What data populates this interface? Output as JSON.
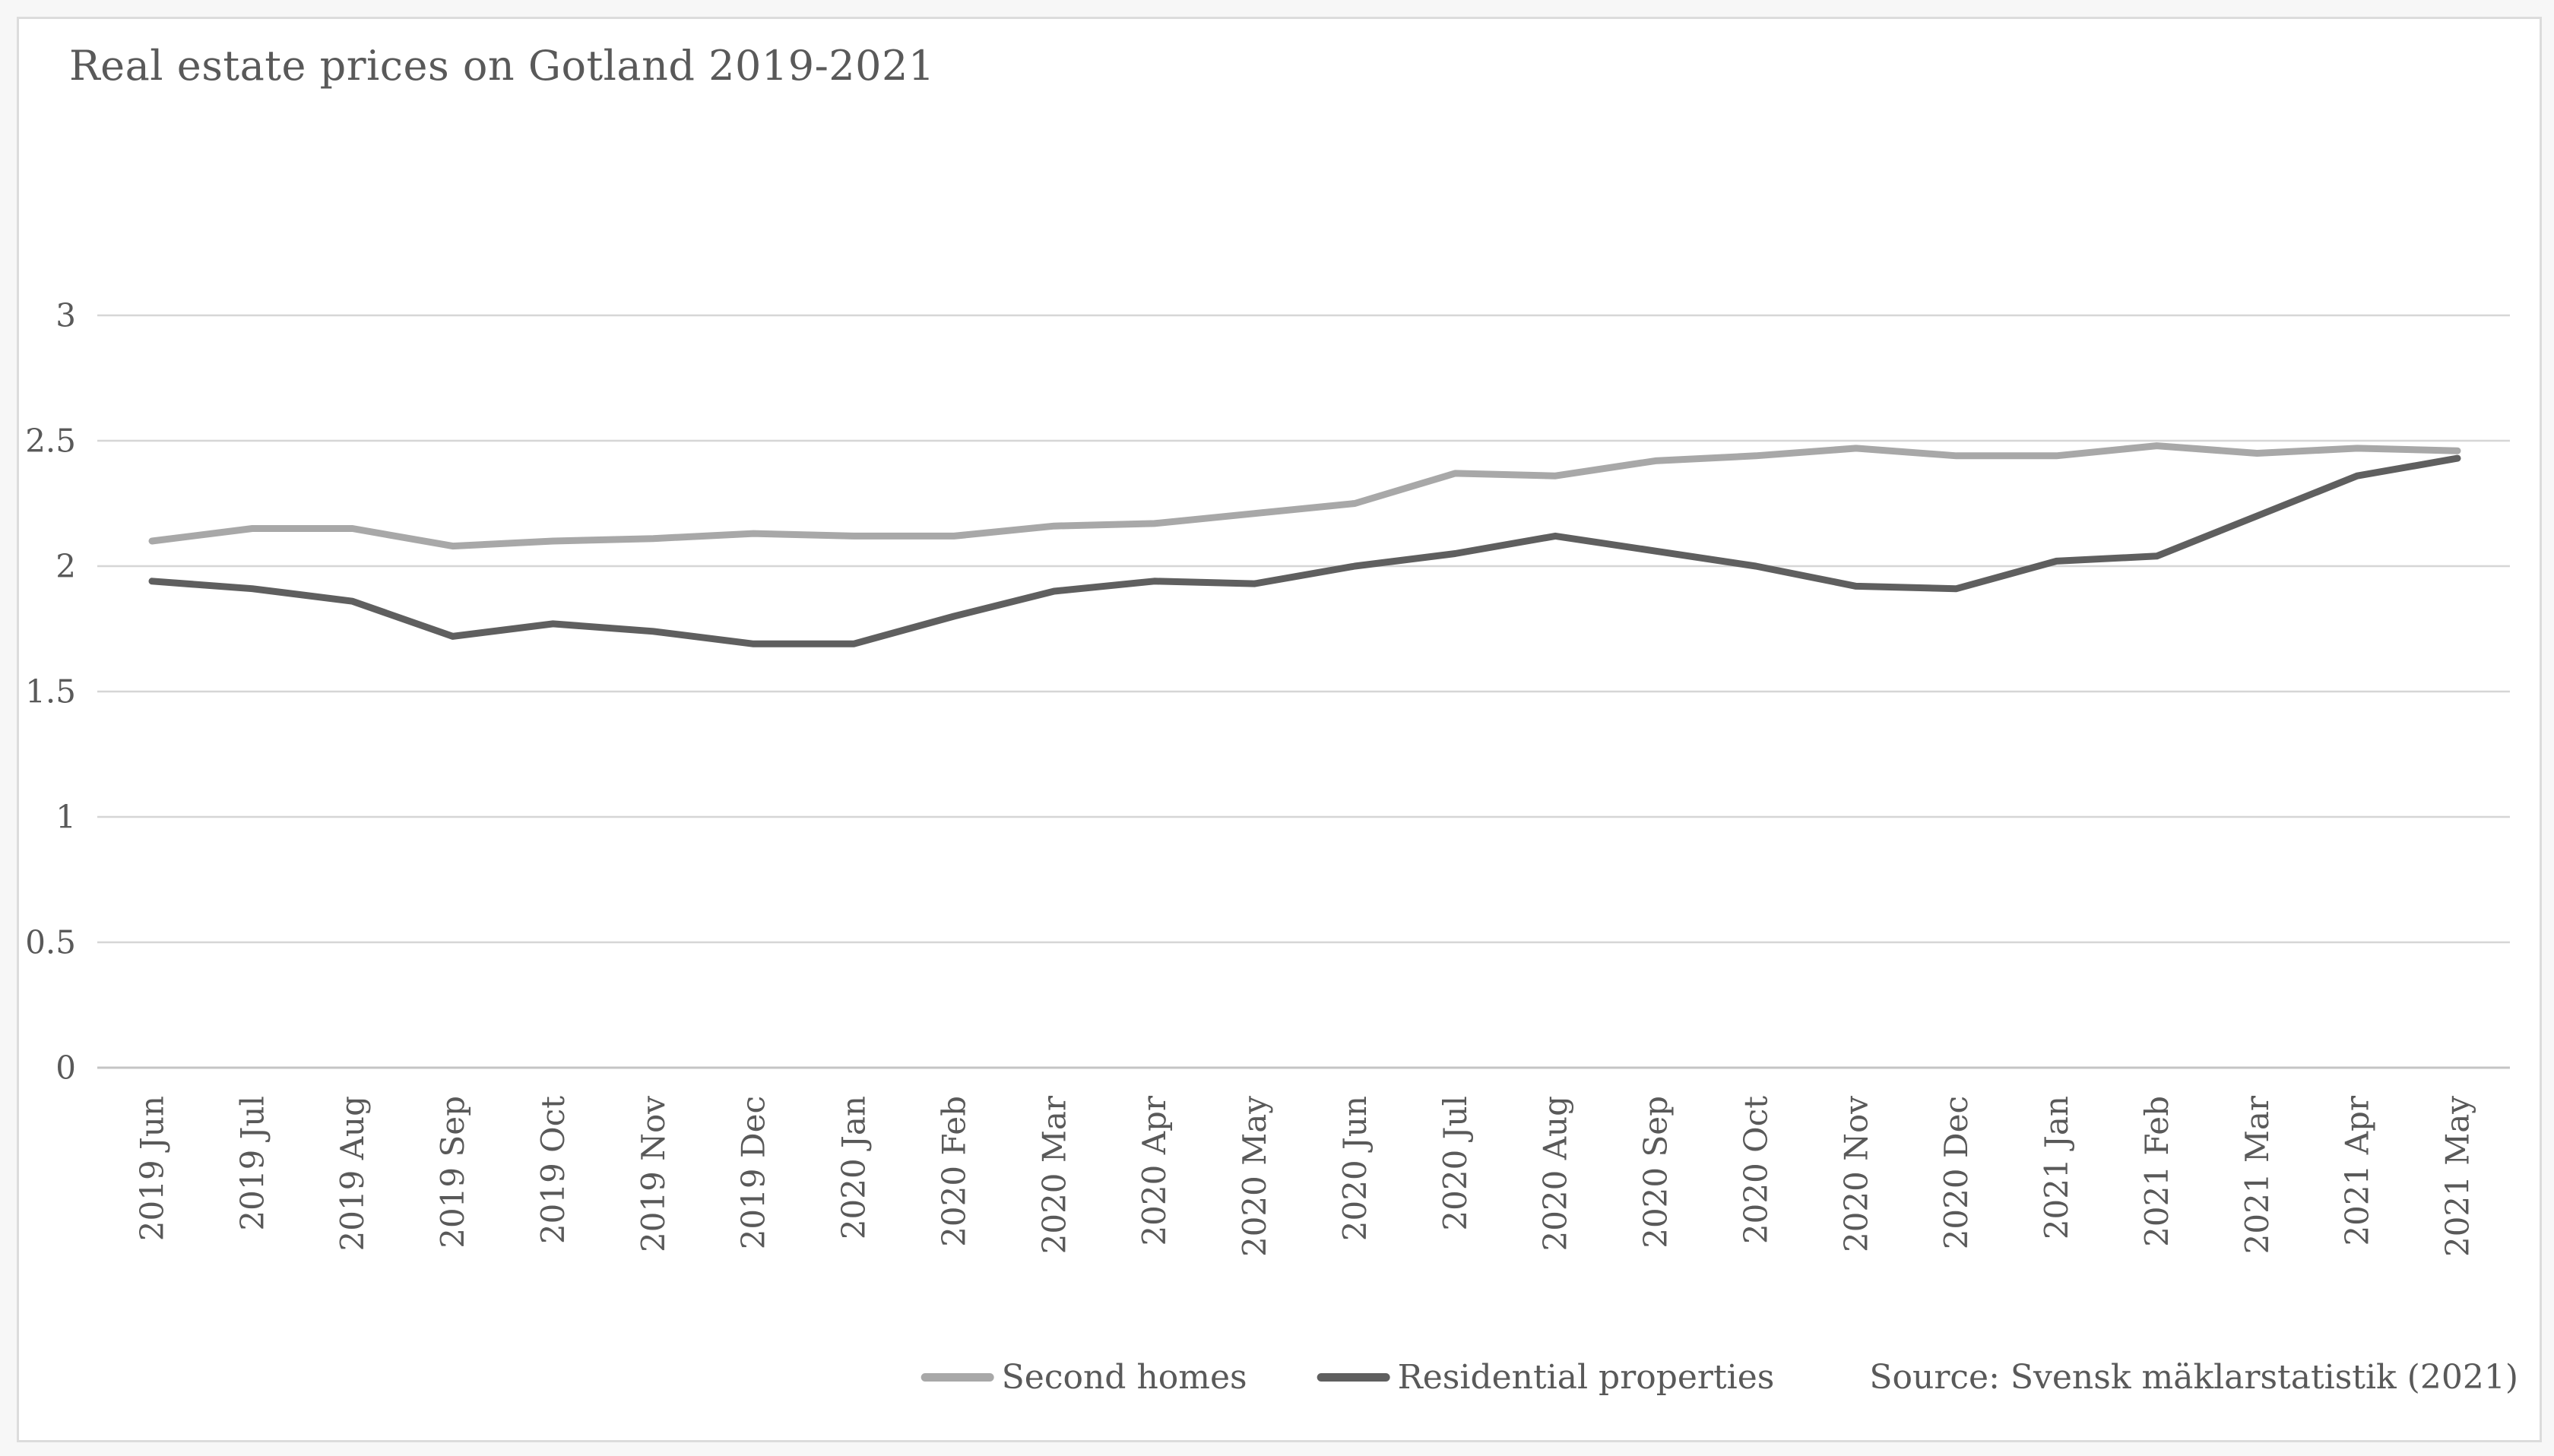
{
  "title": "Real estate prices on Gotland 2019-2021",
  "source": "Source: Svensk mäklarstatistik (2021)",
  "legend": {
    "items": [
      {
        "label": "Second homes",
        "color": "#a8a8a8"
      },
      {
        "label": "Residential properties",
        "color": "#5f5f5f"
      }
    ]
  },
  "colors": {
    "text": "#595959",
    "gridline": "#d6d6d6",
    "axis_line": "#c4c4c4",
    "series_light": "#a8a8a8",
    "series_dark": "#5f5f5f",
    "frame_border": "#dcdcdc"
  },
  "chart_data": {
    "type": "line",
    "title": "Real estate prices on Gotland 2019-2021",
    "xlabel": "",
    "ylabel": "",
    "ylim": [
      0,
      3
    ],
    "y_ticks": [
      0,
      0.5,
      1,
      1.5,
      2,
      2.5,
      3
    ],
    "grid": true,
    "legend_position": "bottom",
    "categories": [
      "2019 Jun",
      "2019 Jul",
      "2019 Aug",
      "2019 Sep",
      "2019 Oct",
      "2019 Nov",
      "2019 Dec",
      "2020 Jan",
      "2020 Feb",
      "2020 Mar",
      "2020 Apr",
      "2020 May",
      "2020 Jun",
      "2020 Jul",
      "2020 Aug",
      "2020 Sep",
      "2020 Oct",
      "2020 Nov",
      "2020 Dec",
      "2021 Jan",
      "2021 Feb",
      "2021 Mar",
      "2021 Apr",
      "2021 May"
    ],
    "series": [
      {
        "name": "Second homes",
        "color": "#a8a8a8",
        "values": [
          2.1,
          2.15,
          2.15,
          2.08,
          2.1,
          2.11,
          2.13,
          2.12,
          2.12,
          2.16,
          2.17,
          2.21,
          2.25,
          2.37,
          2.36,
          2.42,
          2.44,
          2.47,
          2.44,
          2.44,
          2.48,
          2.45,
          2.47,
          2.46
        ]
      },
      {
        "name": "Residential properties",
        "color": "#5f5f5f",
        "values": [
          1.94,
          1.91,
          1.86,
          1.72,
          1.77,
          1.74,
          1.69,
          1.69,
          1.8,
          1.9,
          1.94,
          1.93,
          2.0,
          2.05,
          2.12,
          2.06,
          2.0,
          1.92,
          1.91,
          2.02,
          2.04,
          2.2,
          2.36,
          2.43
        ]
      }
    ]
  }
}
